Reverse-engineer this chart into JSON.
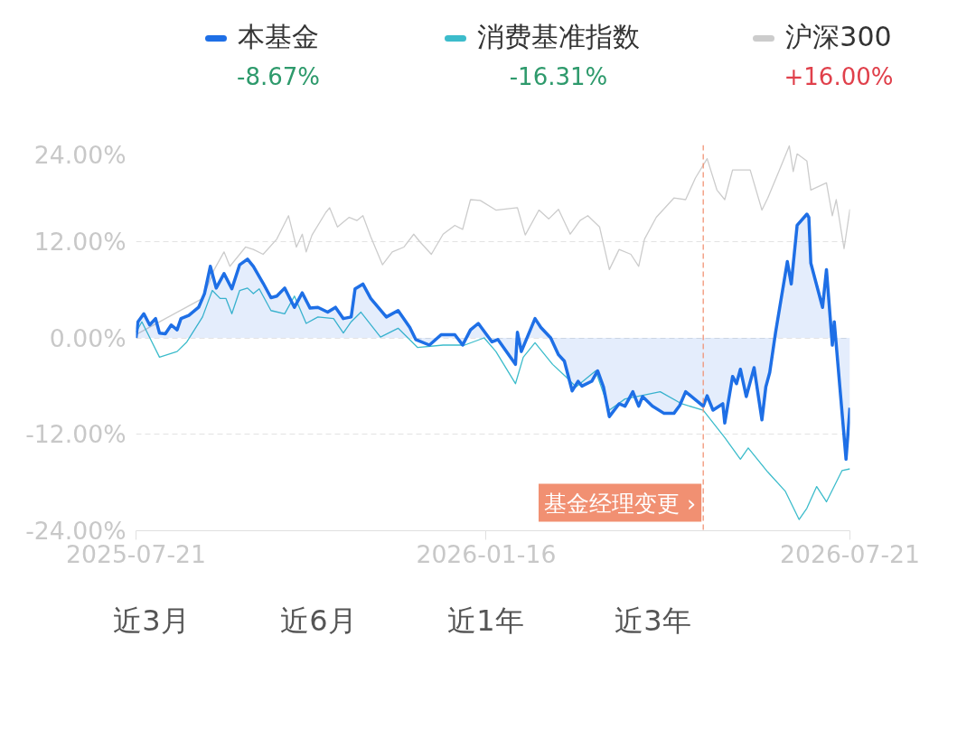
{
  "chart_data": {
    "type": "line",
    "legend": "top",
    "grid": "y",
    "marker": "none",
    "annotations": [
      "-8.67%",
      "-16.31%",
      "+16.00%",
      "近3月",
      "近6月",
      "近1年",
      "近3年"
    ],
    "xlim": [
      "2025-07-21",
      "2026-07-21"
    ],
    "xticks": [
      "2025-07-21",
      "2026-01-16",
      "2026-07-21"
    ],
    "ylim": [
      -24,
      24
    ],
    "yticks": [
      {
        "value": -24,
        "label": "-24.00%"
      },
      {
        "value": -12,
        "label": "-12.00%"
      },
      {
        "value": 0,
        "label": "0.00%"
      },
      {
        "value": 12,
        "label": "12.00%"
      },
      {
        "value": 24,
        "label": "24.00%"
      }
    ],
    "ref_lines": [
      {
        "axis": "x",
        "value": "2026-05-07",
        "label": "基金经理变更 ›",
        "color": "#f08a6a",
        "line_style": "dashed"
      }
    ],
    "series": [
      {
        "name": "沪深300",
        "color": "#cccccc",
        "x": [
          "2025-07-21",
          "2025-08-24",
          "2025-08-30",
          "2025-09-04",
          "2025-09-07",
          "2025-09-15",
          "2025-09-19",
          "2025-09-24",
          "2025-10-01",
          "2025-10-07",
          "2025-10-11",
          "2025-10-14",
          "2025-10-16",
          "2025-10-19",
          "2025-10-26",
          "2025-10-28",
          "2025-11-01",
          "2025-11-07",
          "2025-11-11",
          "2025-11-14",
          "2025-11-18",
          "2025-11-24",
          "2025-11-29",
          "2025-12-05",
          "2025-12-10",
          "2025-12-13",
          "2025-12-19",
          "2025-12-25",
          "2025-12-31",
          "2026-01-04",
          "2026-01-08",
          "2026-01-13",
          "2026-01-21",
          "2026-02-01",
          "2026-02-05",
          "2026-02-12",
          "2026-02-17",
          "2026-02-22",
          "2026-02-28",
          "2026-03-05",
          "2026-03-09",
          "2026-03-15",
          "2026-03-20",
          "2026-03-25",
          "2026-03-31",
          "2026-04-04",
          "2026-04-07",
          "2026-04-13",
          "2026-04-22",
          "2026-04-28",
          "2026-05-03",
          "2026-05-09",
          "2026-05-14",
          "2026-05-18",
          "2026-05-22",
          "2026-05-31",
          "2026-06-06",
          "2026-06-09",
          "2026-06-15",
          "2026-06-20",
          "2026-06-22",
          "2026-06-24",
          "2026-06-29",
          "2026-07-01",
          "2026-07-09",
          "2026-07-12",
          "2026-07-14",
          "2026-07-18",
          "2026-07-21"
        ],
        "values": [
          0.4,
          4.9,
          8.5,
          10.7,
          8.9,
          11.3,
          11.0,
          10.4,
          12.3,
          15.2,
          11.3,
          12.9,
          10.7,
          12.8,
          15.6,
          16.2,
          13.8,
          15.0,
          14.6,
          15.2,
          12.6,
          9.1,
          10.7,
          11.3,
          12.9,
          12.0,
          10.4,
          12.9,
          14.0,
          13.5,
          17.2,
          17.1,
          15.9,
          16.2,
          12.8,
          15.9,
          14.8,
          16.0,
          12.9,
          14.6,
          15.2,
          13.8,
          8.5,
          11.0,
          10.4,
          8.9,
          12.3,
          15.0,
          17.4,
          17.2,
          19.9,
          22.3,
          18.4,
          17.2,
          20.9,
          20.9,
          15.9,
          17.4,
          20.9,
          23.9,
          20.7,
          22.9,
          22.0,
          18.4,
          19.3,
          15.2,
          17.2,
          11.1,
          16.0
        ]
      },
      {
        "name": "消费基准指数",
        "color": "#3cbccb",
        "x": [
          "2025-07-21",
          "2025-07-24",
          "2025-08-02",
          "2025-08-11",
          "2025-08-16",
          "2025-08-24",
          "2025-08-29",
          "2025-09-02",
          "2025-09-05",
          "2025-09-08",
          "2025-09-12",
          "2025-09-16",
          "2025-09-19",
          "2025-09-22",
          "2025-09-28",
          "2025-10-05",
          "2025-10-10",
          "2025-10-16",
          "2025-10-22",
          "2025-10-30",
          "2025-11-04",
          "2025-11-08",
          "2025-11-13",
          "2025-11-23",
          "2025-12-02",
          "2025-12-12",
          "2025-12-25",
          "2026-01-05",
          "2026-01-15",
          "2026-01-21",
          "2026-01-31",
          "2026-02-04",
          "2026-02-10",
          "2026-02-19",
          "2026-02-26",
          "2026-03-03",
          "2026-03-13",
          "2026-03-20",
          "2026-03-28",
          "2026-04-15",
          "2026-04-26",
          "2026-05-07",
          "2026-05-18",
          "2026-05-26",
          "2026-05-30",
          "2026-06-09",
          "2026-06-18",
          "2026-06-25",
          "2026-06-29",
          "2026-07-04",
          "2026-07-09",
          "2026-07-17",
          "2026-07-21"
        ],
        "values": [
          0.7,
          2.0,
          -2.4,
          -1.7,
          -0.5,
          2.6,
          5.9,
          4.9,
          4.9,
          3.0,
          5.9,
          6.2,
          5.5,
          6.1,
          3.4,
          3.0,
          5.2,
          1.8,
          2.6,
          2.4,
          0.6,
          2.0,
          3.2,
          0.1,
          1.2,
          -1.2,
          -0.9,
          -0.9,
          0,
          -1.7,
          -5.7,
          -2.4,
          -0.6,
          -3.3,
          -4.9,
          -6.1,
          -4.1,
          -9.0,
          -7.6,
          -6.7,
          -8.2,
          -9.0,
          -12.4,
          -15.1,
          -13.7,
          -16.7,
          -19.1,
          -22.6,
          -21.2,
          -18.5,
          -20.4,
          -16.5,
          -16.3
        ]
      },
      {
        "name": "本基金",
        "color": "#1e6fe6",
        "type": "area",
        "x": [
          "2025-07-21",
          "2025-07-22",
          "2025-07-25",
          "2025-07-28",
          "2025-07-31",
          "2025-08-02",
          "2025-08-05",
          "2025-08-08",
          "2025-08-11",
          "2025-08-13",
          "2025-08-17",
          "2025-08-22",
          "2025-08-25",
          "2025-08-28",
          "2025-08-31",
          "2025-09-04",
          "2025-09-08",
          "2025-09-12",
          "2025-09-16",
          "2025-09-19",
          "2025-09-24",
          "2025-09-28",
          "2025-10-01",
          "2025-10-05",
          "2025-10-10",
          "2025-10-14",
          "2025-10-18",
          "2025-10-22",
          "2025-10-27",
          "2025-10-31",
          "2025-11-04",
          "2025-11-08",
          "2025-11-10",
          "2025-11-14",
          "2025-11-18",
          "2025-11-26",
          "2025-12-02",
          "2025-12-08",
          "2025-12-11",
          "2025-12-18",
          "2025-12-24",
          "2025-12-31",
          "2026-01-04",
          "2026-01-08",
          "2026-01-12",
          "2026-01-19",
          "2026-01-22",
          "2026-01-31",
          "2026-02-01",
          "2026-02-03",
          "2026-02-10",
          "2026-02-13",
          "2026-02-18",
          "2026-02-22",
          "2026-02-25",
          "2026-03-01",
          "2026-03-04",
          "2026-03-06",
          "2026-03-11",
          "2026-03-14",
          "2026-03-17",
          "2026-03-20",
          "2026-03-25",
          "2026-03-28",
          "2026-04-01",
          "2026-04-04",
          "2026-04-06",
          "2026-04-11",
          "2026-04-17",
          "2026-04-22",
          "2026-04-25",
          "2026-04-28",
          "2026-05-07",
          "2026-05-09",
          "2026-05-12",
          "2026-05-17",
          "2026-05-18",
          "2026-05-22",
          "2026-05-24",
          "2026-05-26",
          "2026-05-29",
          "2026-06-02",
          "2026-06-06",
          "2026-06-08",
          "2026-06-10",
          "2026-06-13",
          "2026-06-19",
          "2026-06-21",
          "2026-06-24",
          "2026-06-29",
          "2026-06-30",
          "2026-07-01",
          "2026-07-07",
          "2026-07-09",
          "2026-07-12",
          "2026-07-13",
          "2026-07-19",
          "2026-07-21"
        ],
        "values": [
          0.0,
          2.0,
          3.0,
          1.6,
          2.4,
          0.6,
          0.5,
          1.6,
          1.0,
          2.4,
          2.8,
          3.8,
          5.5,
          8.9,
          6.2,
          8.0,
          6.1,
          9.1,
          9.8,
          8.9,
          6.8,
          5.0,
          5.2,
          6.2,
          3.8,
          5.6,
          3.7,
          3.8,
          3.2,
          3.8,
          2.4,
          2.6,
          6.1,
          6.7,
          4.9,
          2.6,
          3.4,
          1.3,
          -0.2,
          -0.9,
          0.4,
          0.4,
          -0.9,
          1.0,
          1.8,
          -0.5,
          -0.2,
          -3.3,
          0.7,
          -1.7,
          2.4,
          1.3,
          0,
          -2.1,
          -2.9,
          -6.6,
          -5.4,
          -6.0,
          -5.4,
          -4.1,
          -6.1,
          -9.8,
          -8.2,
          -8.5,
          -6.7,
          -8.5,
          -7.3,
          -8.5,
          -9.4,
          -9.4,
          -8.4,
          -6.7,
          -8.5,
          -7.2,
          -9.0,
          -8.2,
          -10.6,
          -4.8,
          -5.7,
          -3.9,
          -7.3,
          -3.7,
          -10.2,
          -6.1,
          -4.3,
          0.7,
          9.5,
          6.7,
          14.0,
          15.4,
          15.0,
          9.3,
          3.8,
          8.5,
          -0.9,
          2.0,
          -15.1,
          -8.7
        ]
      }
    ]
  }
}
